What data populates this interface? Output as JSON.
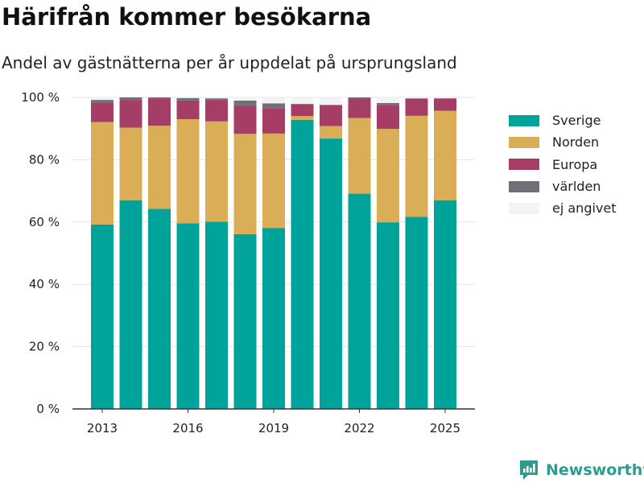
{
  "header": {
    "title": "Härifrån kommer besökarna",
    "subtitle": "Andel av gästnätterna per år uppdelat på ursprungsland"
  },
  "brand": {
    "name": "Newsworthy",
    "icon": "newsworthy-logo-icon"
  },
  "colors": {
    "Sverige": "#00a39a",
    "Norden": "#d9ae57",
    "Europa": "#a63d66",
    "världen": "#707076",
    "ej angivet": "#f3f3f3",
    "brand": "#2a9d8f"
  },
  "chart_data": {
    "type": "bar",
    "stacked": true,
    "categories": [
      "2013",
      "2014",
      "2015",
      "2016",
      "2017",
      "2018",
      "2019",
      "2020",
      "2021",
      "2022",
      "2023",
      "2024",
      "2025"
    ],
    "x_tick_labels": [
      "2013",
      "2016",
      "2019",
      "2022",
      "2025"
    ],
    "y_tick_labels": [
      "0 %",
      "20 %",
      "40 %",
      "60 %",
      "80 %",
      "100 %"
    ],
    "ylim": [
      0,
      100
    ],
    "grid": true,
    "legend_position": "right",
    "series": [
      {
        "name": "Sverige",
        "values": [
          59.2,
          67.0,
          64.2,
          59.6,
          60.1,
          56.1,
          58.1,
          92.8,
          86.8,
          69.1,
          59.9,
          61.7,
          67.0
        ]
      },
      {
        "name": "Norden",
        "values": [
          32.9,
          23.3,
          26.7,
          33.4,
          32.2,
          32.2,
          30.3,
          1.2,
          4.0,
          24.3,
          30.0,
          32.4,
          28.7
        ]
      },
      {
        "name": "Europa",
        "values": [
          6.2,
          8.9,
          8.8,
          6.0,
          6.9,
          9.0,
          8.2,
          3.9,
          6.8,
          6.2,
          7.7,
          5.5,
          4.0
        ]
      },
      {
        "name": "världen",
        "values": [
          0.9,
          0.8,
          0.3,
          0.8,
          0.5,
          1.7,
          1.5,
          0.0,
          0.0,
          0.4,
          0.6,
          0.1,
          0.0
        ]
      },
      {
        "name": "ej angivet",
        "values": [
          0.8,
          0.0,
          0.0,
          0.2,
          0.3,
          1.0,
          1.9,
          2.1,
          2.4,
          0.0,
          1.8,
          0.3,
          0.3
        ]
      }
    ]
  }
}
